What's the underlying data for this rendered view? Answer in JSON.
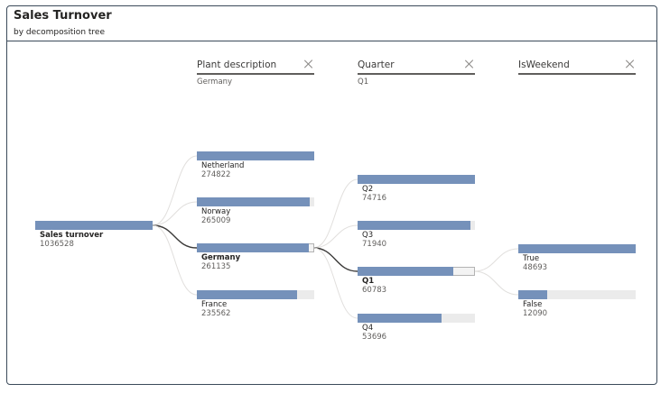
{
  "visual": {
    "title": "Sales Turnover",
    "subtitle": "by decomposition tree"
  },
  "levels": [
    {
      "name": "Plant description",
      "filter": "Germany"
    },
    {
      "name": "Quarter",
      "filter": "Q1"
    },
    {
      "name": "IsWeekend",
      "filter": ""
    }
  ],
  "root": {
    "label": "Sales turnover",
    "value": "1036528",
    "fill_fraction": 1.0
  },
  "plants": [
    {
      "label": "Netherland",
      "value": "274822",
      "fill_fraction": 1.0,
      "selected": false
    },
    {
      "label": "Norway",
      "value": "265009",
      "fill_fraction": 0.964,
      "selected": false
    },
    {
      "label": "Germany",
      "value": "261135",
      "fill_fraction": 0.95,
      "selected": true
    },
    {
      "label": "France",
      "value": "235562",
      "fill_fraction": 0.857,
      "selected": false
    }
  ],
  "quarters": [
    {
      "label": "Q2",
      "value": "74716",
      "fill_fraction": 1.0,
      "selected": false
    },
    {
      "label": "Q3",
      "value": "71940",
      "fill_fraction": 0.963,
      "selected": false
    },
    {
      "label": "Q1",
      "value": "60783",
      "fill_fraction": 0.814,
      "selected": true
    },
    {
      "label": "Q4",
      "value": "53696",
      "fill_fraction": 0.719,
      "selected": false
    }
  ],
  "weekend": [
    {
      "label": "True",
      "value": "48693",
      "fill_fraction": 1.0,
      "selected": false
    },
    {
      "label": "False",
      "value": "12090",
      "fill_fraction": 0.248,
      "selected": false
    }
  ],
  "colors": {
    "bar_fill": "#7591ba",
    "bar_track": "#ebebeb",
    "active_link": "#3b3a39",
    "inactive_link": "#e1dfdd"
  }
}
